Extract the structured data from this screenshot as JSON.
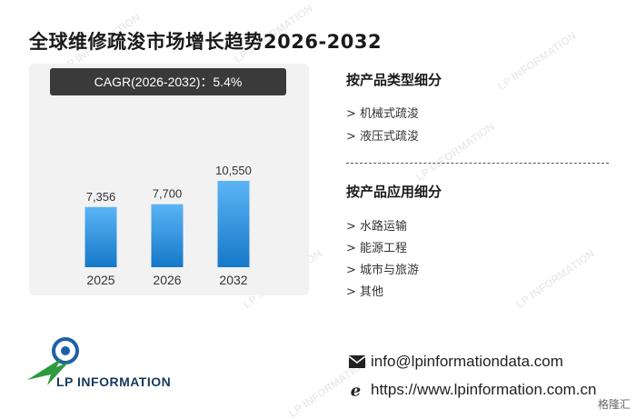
{
  "title": "全球维修疏浚市场增长趋势2026-2032",
  "cagr_label": "CAGR(2026-2032)：5.4%",
  "chart_data": {
    "type": "bar",
    "title": "",
    "xlabel": "",
    "ylabel": "",
    "categories": [
      "2025",
      "2026",
      "2032"
    ],
    "values": [
      7356,
      7700,
      10550
    ],
    "value_labels": [
      "7,356",
      "7,700",
      "10,550"
    ],
    "colors": {
      "bar_top": "#5bb4f4",
      "bar_bottom": "#1678c9"
    }
  },
  "segments": {
    "type_title": "按产品类型细分",
    "type_items": [
      "> 机械式疏浚",
      "> 液压式疏浚"
    ],
    "app_title": "按产品应用细分",
    "app_items": [
      "> 水路运输",
      "> 能源工程",
      "> 城市与旅游",
      "> 其他"
    ]
  },
  "logo_text": "LP INFORMATION",
  "contact": {
    "email": "info@lpinformationdata.com",
    "website": "https://www.lpinformation.com.cn"
  },
  "icons": [
    "envelope-icon",
    "browser-e-icon",
    "lp-logo-icon"
  ],
  "corner_badge": "格隆汇"
}
